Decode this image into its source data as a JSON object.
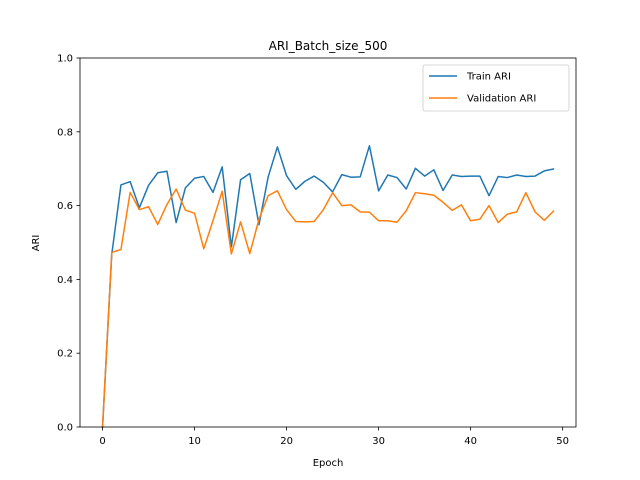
{
  "chart_data": {
    "type": "line",
    "title": "ARI_Batch_size_500",
    "xlabel": "Epoch",
    "ylabel": "ARI",
    "xlim": [
      -2.45,
      51.45
    ],
    "ylim": [
      0.0,
      1.0
    ],
    "xticks": [
      0,
      10,
      20,
      30,
      40,
      50
    ],
    "yticks": [
      0.0,
      0.2,
      0.4,
      0.6,
      0.8,
      1.0
    ],
    "legend_position": "top-right",
    "grid": false,
    "x": [
      0,
      1,
      2,
      3,
      4,
      5,
      6,
      7,
      8,
      9,
      10,
      11,
      12,
      13,
      14,
      15,
      16,
      17,
      18,
      19,
      20,
      21,
      22,
      23,
      24,
      25,
      26,
      27,
      28,
      29,
      30,
      31,
      32,
      33,
      34,
      35,
      36,
      37,
      38,
      39,
      40,
      41,
      42,
      43,
      44,
      45,
      46,
      47,
      48,
      49
    ],
    "series": [
      {
        "name": "Train ARI",
        "color": "#1f77b4",
        "values": [
          0.0,
          0.468,
          0.656,
          0.665,
          0.594,
          0.655,
          0.689,
          0.693,
          0.554,
          0.648,
          0.674,
          0.679,
          0.636,
          0.705,
          0.488,
          0.67,
          0.687,
          0.548,
          0.678,
          0.759,
          0.681,
          0.644,
          0.666,
          0.68,
          0.663,
          0.637,
          0.684,
          0.677,
          0.678,
          0.762,
          0.64,
          0.683,
          0.676,
          0.645,
          0.701,
          0.68,
          0.697,
          0.641,
          0.683,
          0.679,
          0.68,
          0.68,
          0.627,
          0.679,
          0.676,
          0.683,
          0.679,
          0.68,
          0.694,
          0.699
        ]
      },
      {
        "name": "Validation ARI",
        "color": "#ff7f0e",
        "values": [
          0.0,
          0.473,
          0.481,
          0.636,
          0.589,
          0.597,
          0.549,
          0.603,
          0.645,
          0.588,
          0.579,
          0.483,
          0.559,
          0.639,
          0.469,
          0.556,
          0.47,
          0.563,
          0.627,
          0.64,
          0.589,
          0.557,
          0.556,
          0.557,
          0.589,
          0.635,
          0.6,
          0.602,
          0.583,
          0.582,
          0.559,
          0.559,
          0.555,
          0.586,
          0.635,
          0.632,
          0.628,
          0.609,
          0.587,
          0.602,
          0.559,
          0.563,
          0.6,
          0.554,
          0.577,
          0.583,
          0.635,
          0.583,
          0.56,
          0.585
        ]
      }
    ]
  }
}
